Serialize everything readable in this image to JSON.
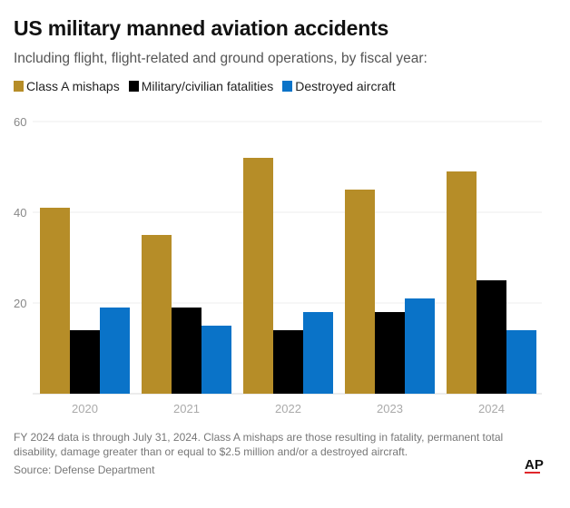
{
  "header": {
    "title": "US military manned aviation accidents",
    "subtitle": "Including flight, flight-related and ground operations, by fiscal year:"
  },
  "legend": [
    {
      "label": "Class A mishaps",
      "color": "#b68d28"
    },
    {
      "label": "Military/civilian fatalities",
      "color": "#000000"
    },
    {
      "label": "Destroyed aircraft",
      "color": "#0a73c8"
    }
  ],
  "chart_data": {
    "type": "bar",
    "title": "US military manned aviation accidents",
    "subtitle": "Including flight, flight-related and ground operations, by fiscal year:",
    "xlabel": "",
    "ylabel": "",
    "categories": [
      "2020",
      "2021",
      "2022",
      "2023",
      "2024"
    ],
    "series": [
      {
        "name": "Class A mishaps",
        "color": "#b68d28",
        "values": [
          41,
          35,
          52,
          45,
          49
        ]
      },
      {
        "name": "Military/civilian fatalities",
        "color": "#000000",
        "values": [
          14,
          19,
          14,
          18,
          25
        ]
      },
      {
        "name": "Destroyed aircraft",
        "color": "#0a73c8",
        "values": [
          19,
          15,
          18,
          21,
          14
        ]
      }
    ],
    "ylim": [
      0,
      60
    ],
    "yticks": [
      20,
      40,
      60
    ],
    "ytick_labels": [
      "20",
      "40",
      "60"
    ],
    "grid": true,
    "legend_position": "top-left"
  },
  "footer": {
    "note": "FY 2024 data is through July 31, 2024. Class A mishaps are those resulting in fatality, permanent total disability, damage greater than or equal to $2.5 million and/or a destroyed aircraft.",
    "source": "Source: Defense Department",
    "logo": "AP"
  }
}
